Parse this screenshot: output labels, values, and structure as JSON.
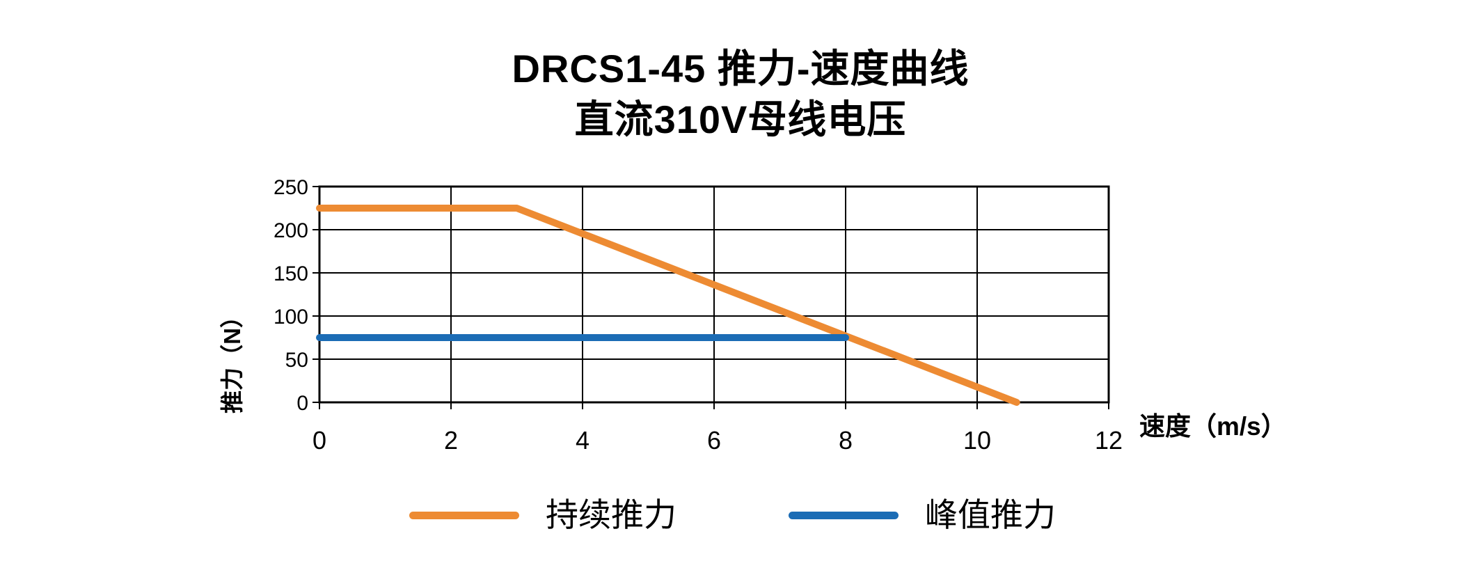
{
  "chart_data": {
    "type": "line",
    "title": "DRCS1-45 推力-速度曲线",
    "subtitle": "直流310V母线电压",
    "xlabel": "速度（m/s）",
    "ylabel": "推力（N）",
    "xlim": [
      0,
      12
    ],
    "ylim": [
      0,
      250
    ],
    "x_ticks": [
      0,
      2,
      4,
      6,
      8,
      10,
      12
    ],
    "y_ticks": [
      0,
      50,
      100,
      150,
      200,
      250
    ],
    "grid": "on",
    "grid_color": "#000000",
    "axis_color": "#000000",
    "legend_position": "bottom",
    "series": [
      {
        "name": "持续推力",
        "color": "#ED8B33",
        "points": [
          [
            0,
            225
          ],
          [
            3,
            225
          ],
          [
            10.6,
            0
          ]
        ]
      },
      {
        "name": "峰值推力",
        "color": "#1B6CB5",
        "points": [
          [
            0,
            75
          ],
          [
            8,
            75
          ]
        ]
      }
    ]
  }
}
